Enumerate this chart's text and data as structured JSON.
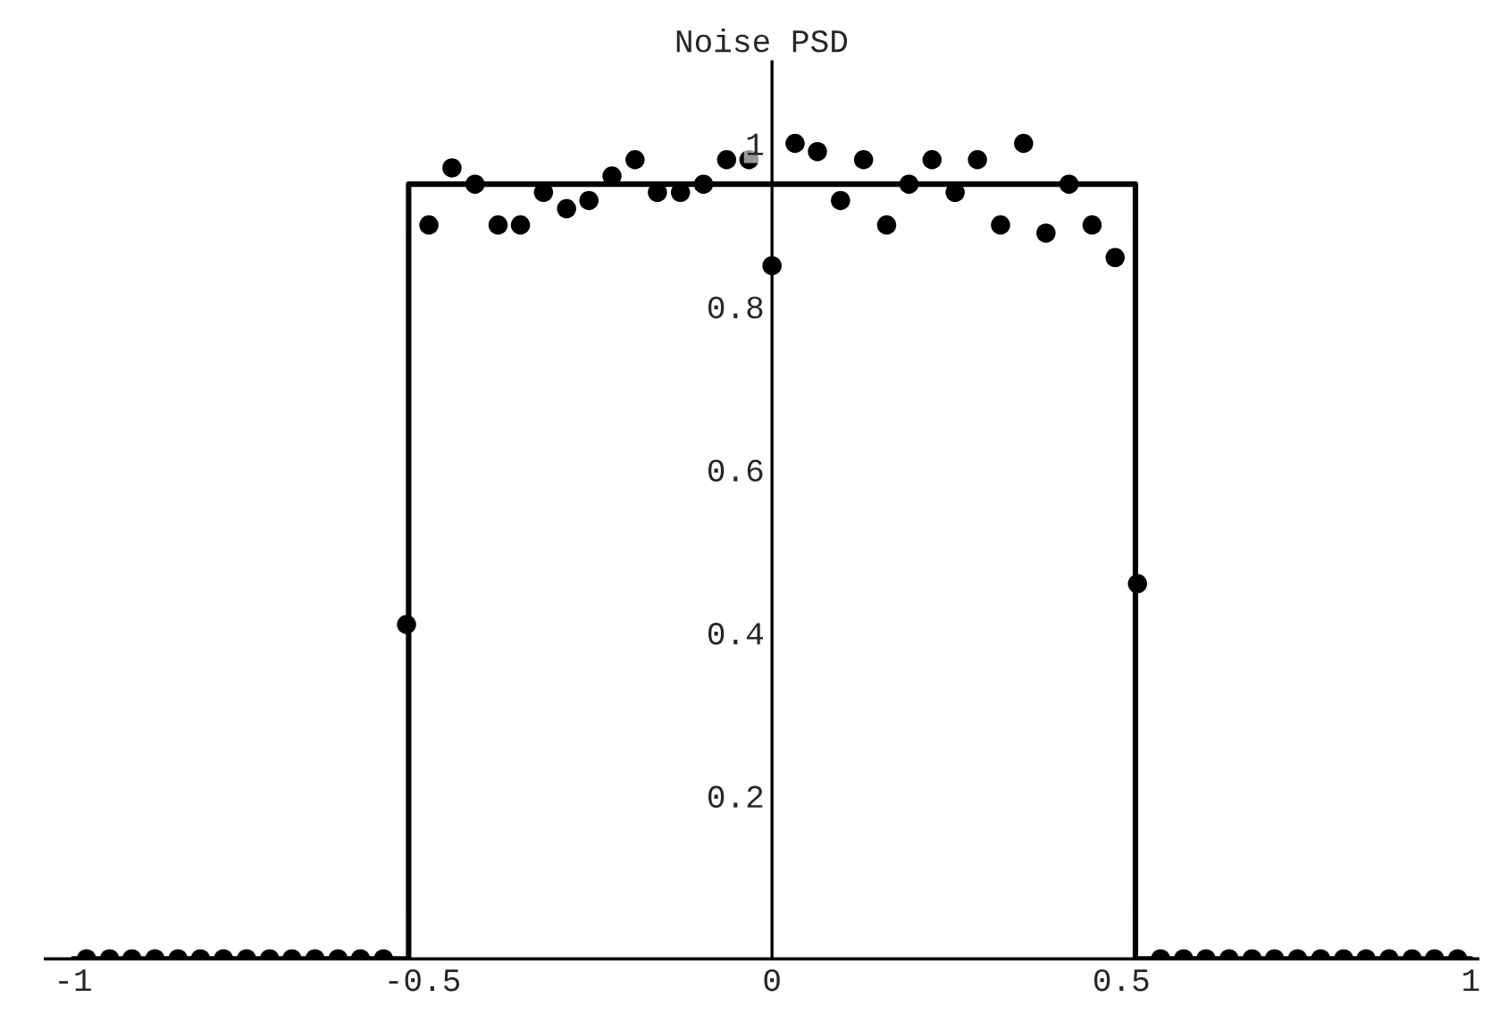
{
  "chart_data": {
    "type": "scatter",
    "title": "Noise PSD",
    "xlim": [
      -1.04,
      1.01
    ],
    "ylim": [
      0,
      1.1
    ],
    "xticks": [
      -1,
      -0.5,
      0,
      0.5,
      1
    ],
    "yticks": [
      0.2,
      0.4,
      0.6,
      0.8,
      1
    ],
    "grid": false,
    "legend": false,
    "marker": "circle",
    "series": [
      {
        "type": "step",
        "color": "#000000",
        "line_style": "solid",
        "marker": "none",
        "x": [
          -1.0,
          -0.52,
          0.52,
          1.0
        ],
        "values": [
          0,
          0.95,
          0,
          0
        ]
      },
      {
        "color": "#000000",
        "x": [
          -0.981,
          -0.948,
          -0.916,
          -0.883,
          -0.85,
          -0.818,
          -0.785,
          -0.752,
          -0.719,
          -0.687,
          -0.654,
          -0.621,
          -0.589,
          -0.556,
          -0.523,
          -0.491,
          -0.458,
          -0.425,
          -0.392,
          -0.36,
          -0.327,
          -0.294,
          -0.262,
          -0.229,
          -0.196,
          -0.164,
          -0.131,
          -0.098,
          -0.065,
          -0.033,
          0.0,
          0.033,
          0.065,
          0.098,
          0.131,
          0.164,
          0.196,
          0.229,
          0.262,
          0.294,
          0.327,
          0.36,
          0.392,
          0.425,
          0.458,
          0.491,
          0.523,
          0.556,
          0.589,
          0.621,
          0.654,
          0.687,
          0.719,
          0.752,
          0.785,
          0.818,
          0.85,
          0.883,
          0.916,
          0.948,
          0.981
        ],
        "values": [
          0,
          0,
          0,
          0,
          0,
          0,
          0,
          0,
          0,
          0,
          0,
          0,
          0,
          0,
          0.41,
          0.9,
          0.97,
          0.95,
          0.9,
          0.9,
          0.94,
          0.92,
          0.93,
          0.96,
          0.98,
          0.94,
          0.94,
          0.95,
          0.98,
          0.98,
          0.85,
          1.0,
          0.99,
          0.93,
          0.98,
          0.9,
          0.95,
          0.98,
          0.94,
          0.98,
          0.9,
          1.0,
          0.89,
          0.95,
          0.9,
          0.86,
          0.46,
          0,
          0,
          0,
          0,
          0,
          0,
          0,
          0,
          0,
          0,
          0,
          0,
          0,
          0
        ]
      }
    ]
  }
}
